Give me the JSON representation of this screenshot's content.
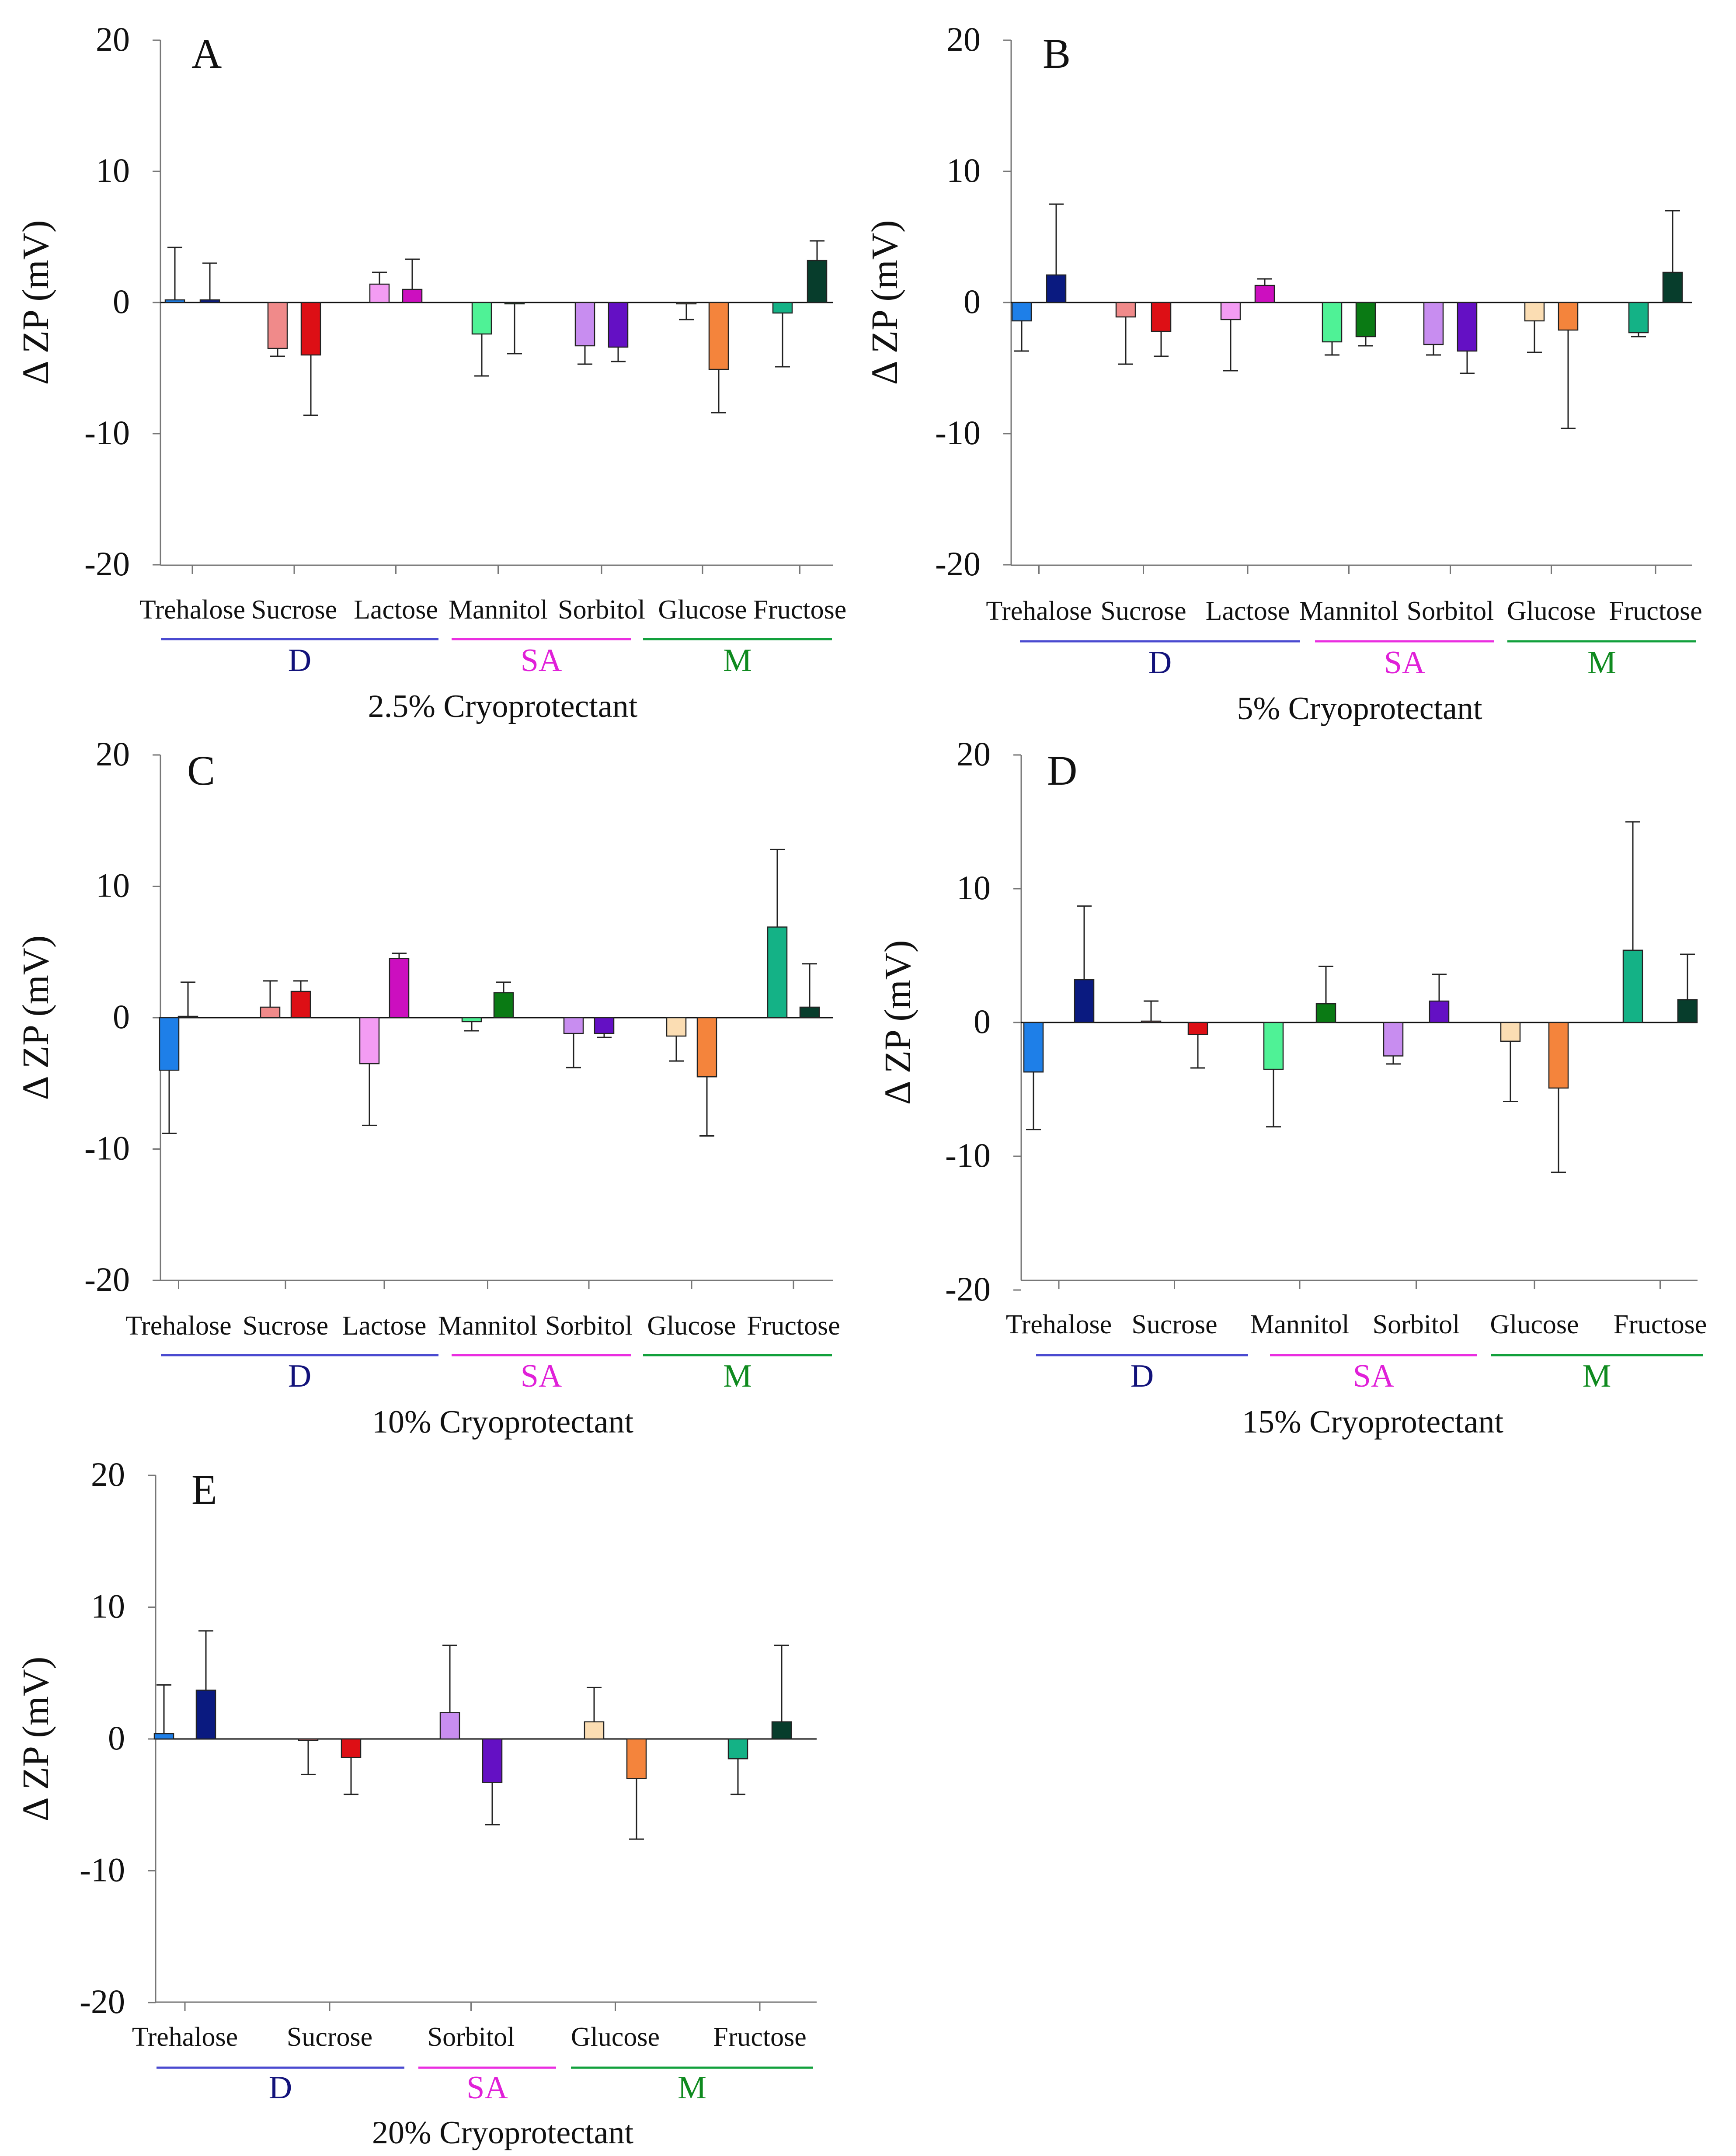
{
  "figure": {
    "group_labels": [
      "D",
      "SA",
      "M"
    ]
  },
  "colors": {
    "Trehalose": [
      "#1e7fe8",
      "#0a1a80"
    ],
    "Sucrose": [
      "#f08a8a",
      "#dd0f15"
    ],
    "Lactose": [
      "#f39cf3",
      "#cc0fbf"
    ],
    "Mannitol": [
      "#4ff296",
      "#0a7a14"
    ],
    "Sorbitol": [
      "#c88df0",
      "#6410c4"
    ],
    "Glucose": [
      "#fbddb3",
      "#f4843c"
    ],
    "Fructose": [
      "#14b286",
      "#073d2c"
    ],
    "group_D": "#4a4ad0",
    "group_SA": "#ea2ee0",
    "group_M": "#12a03c",
    "label_D": "#12127a",
    "label_SA": "#e020d8",
    "label_M": "#0f8a1f"
  },
  "chart_data": [
    {
      "panel": "A",
      "type": "bar",
      "title": "2.5% Cryoprotectant",
      "ylabel": "Δ ZP (mV)",
      "ylim": [
        -20,
        20
      ],
      "yticks": [
        "20",
        "10",
        "0",
        "-10",
        "-20"
      ],
      "categories": [
        "Trehalose",
        "Sucrose",
        "Lactose",
        "Mannitol",
        "Sorbitol",
        "Glucose",
        "Fructose"
      ],
      "series": [
        {
          "name": "light",
          "values": [
            0.2,
            -3.5,
            1.4,
            -2.4,
            -3.3,
            -0.1,
            -0.8
          ],
          "errors": [
            4.0,
            0.6,
            0.9,
            3.2,
            1.4,
            1.2,
            4.1
          ]
        },
        {
          "name": "dark",
          "values": [
            0.2,
            -4.0,
            1.0,
            -0.1,
            -3.4,
            -5.1,
            3.2
          ],
          "errors": [
            2.8,
            4.6,
            2.3,
            3.8,
            1.1,
            3.3,
            1.5
          ]
        }
      ],
      "groups": [
        {
          "label": "D",
          "from": 0,
          "to": 2
        },
        {
          "label": "SA",
          "from": 3,
          "to": 4
        },
        {
          "label": "M",
          "from": 5,
          "to": 6
        }
      ]
    },
    {
      "panel": "B",
      "type": "bar",
      "title": "5% Cryoprotectant",
      "ylabel": "Δ ZP (mV)",
      "ylim": [
        -20,
        20
      ],
      "yticks": [
        "20",
        "10",
        "0",
        "-10",
        "-20"
      ],
      "categories": [
        "Trehalose",
        "Sucrose",
        "Lactose",
        "Mannitol",
        "Sorbitol",
        "Glucose",
        "Fructose"
      ],
      "series": [
        {
          "name": "light",
          "values": [
            -1.4,
            -1.1,
            -1.3,
            -3.0,
            -3.2,
            -1.4,
            -2.3
          ],
          "errors": [
            2.3,
            3.6,
            3.9,
            1.0,
            0.8,
            2.4,
            0.3
          ]
        },
        {
          "name": "dark",
          "values": [
            2.1,
            -2.2,
            1.3,
            -2.6,
            -3.7,
            -2.1,
            2.3
          ],
          "errors": [
            5.4,
            1.9,
            0.5,
            0.7,
            1.7,
            7.5,
            4.7
          ]
        }
      ],
      "groups": [
        {
          "label": "D",
          "from": 0,
          "to": 2
        },
        {
          "label": "SA",
          "from": 3,
          "to": 4
        },
        {
          "label": "M",
          "from": 5,
          "to": 6
        }
      ]
    },
    {
      "panel": "C",
      "type": "bar",
      "title": "10% Cryoprotectant",
      "ylabel": "Δ ZP (mV)",
      "ylim": [
        -20,
        20
      ],
      "yticks": [
        "20",
        "10",
        "0",
        "-10",
        "-20"
      ],
      "categories": [
        "Trehalose",
        "Sucrose",
        "Lactose",
        "Mannitol",
        "Sorbitol",
        "Glucose",
        "Fructose"
      ],
      "series": [
        {
          "name": "light",
          "values": [
            -4.0,
            0.8,
            -3.5,
            -0.3,
            -1.2,
            -1.4,
            6.9
          ],
          "errors": [
            4.8,
            2.0,
            4.7,
            0.7,
            2.6,
            1.9,
            5.9
          ]
        },
        {
          "name": "dark",
          "values": [
            0.1,
            2.0,
            4.5,
            1.9,
            -1.2,
            -4.5,
            0.8
          ],
          "errors": [
            2.6,
            0.8,
            0.4,
            0.8,
            0.3,
            4.5,
            3.3
          ]
        }
      ],
      "groups": [
        {
          "label": "D",
          "from": 0,
          "to": 2
        },
        {
          "label": "SA",
          "from": 3,
          "to": 4
        },
        {
          "label": "M",
          "from": 5,
          "to": 6
        }
      ]
    },
    {
      "panel": "D",
      "type": "bar",
      "title": "15% Cryoprotectant",
      "ylabel": "Δ ZP (mV)",
      "ylim": [
        -20,
        20
      ],
      "yticks": [
        "20",
        "10",
        "0",
        "-10",
        "-20"
      ],
      "categories": [
        "Trehalose",
        "Sucrose",
        "Mannitol",
        "Sorbitol",
        "Glucose",
        "Fructose"
      ],
      "series": [
        {
          "name": "light",
          "values": [
            -3.7,
            0.1,
            -3.5,
            -2.5,
            -1.4,
            5.4
          ],
          "errors": [
            4.3,
            1.5,
            4.3,
            0.6,
            4.5,
            9.6
          ]
        },
        {
          "name": "dark",
          "values": [
            3.2,
            -0.9,
            1.4,
            1.6,
            -4.9,
            1.7
          ],
          "errors": [
            5.5,
            2.5,
            2.8,
            2.0,
            6.3,
            3.4
          ]
        }
      ],
      "groups": [
        {
          "label": "D",
          "from": 0,
          "to": 1
        },
        {
          "label": "SA",
          "from": 2,
          "to": 3
        },
        {
          "label": "M",
          "from": 4,
          "to": 5
        }
      ]
    },
    {
      "panel": "E",
      "type": "bar",
      "title": "20% Cryoprotectant",
      "ylabel": "Δ ZP (mV)",
      "ylim": [
        -20,
        20
      ],
      "yticks": [
        "20",
        "10",
        "0",
        "-10",
        "-20"
      ],
      "categories": [
        "Trehalose",
        "Sucrose",
        "Sorbitol",
        "Glucose",
        "Fructose"
      ],
      "series": [
        {
          "name": "light",
          "values": [
            0.4,
            -0.1,
            2.0,
            1.3,
            -1.5
          ],
          "errors": [
            3.7,
            2.6,
            5.1,
            2.6,
            2.7
          ]
        },
        {
          "name": "dark",
          "values": [
            3.7,
            -1.4,
            -3.3,
            -3.0,
            1.3
          ],
          "errors": [
            4.5,
            2.8,
            3.2,
            4.6,
            5.8
          ]
        }
      ],
      "groups": [
        {
          "label": "D",
          "from": 0,
          "to": 1
        },
        {
          "label": "SA",
          "from": 2,
          "to": 2
        },
        {
          "label": "M",
          "from": 3,
          "to": 4
        }
      ]
    }
  ]
}
